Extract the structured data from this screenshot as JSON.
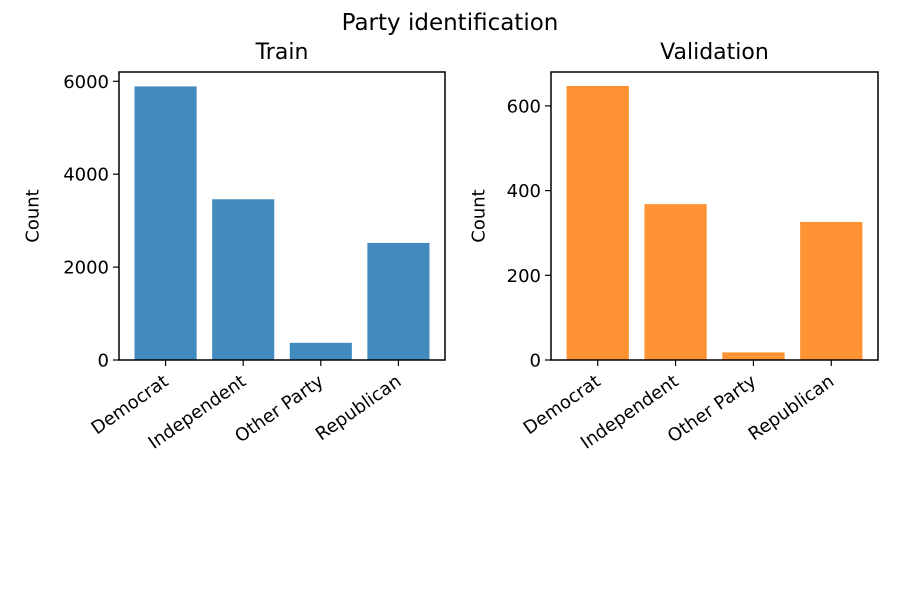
{
  "figure": {
    "suptitle": "Party identification"
  },
  "chart_data": [
    {
      "type": "bar",
      "title": "Train",
      "xlabel": "",
      "ylabel": "Count",
      "categories": [
        "Democrat",
        "Independent",
        "Other Party",
        "Republican"
      ],
      "values": [
        5890,
        3460,
        370,
        2520
      ],
      "ylim": [
        0,
        6200
      ],
      "yticks": [
        0,
        2000,
        4000,
        6000
      ],
      "color": "#428bbf",
      "grid": false
    },
    {
      "type": "bar",
      "title": "Validation",
      "xlabel": "",
      "ylabel": "Count",
      "categories": [
        "Democrat",
        "Independent",
        "Other Party",
        "Republican"
      ],
      "values": [
        647,
        368,
        18,
        326
      ],
      "ylim": [
        0,
        680
      ],
      "yticks": [
        0,
        200,
        400,
        600
      ],
      "color": "#ff9334",
      "grid": false
    }
  ]
}
